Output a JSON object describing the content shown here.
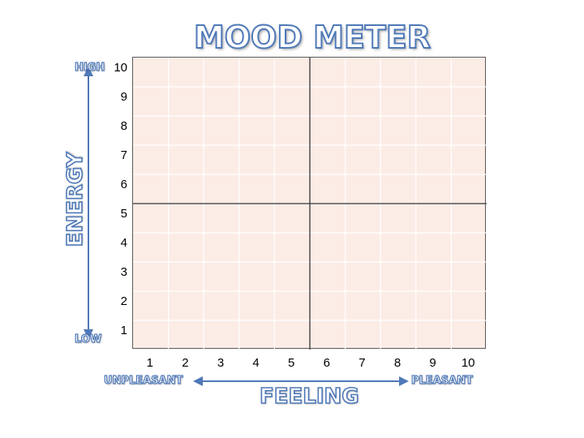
{
  "title": "MOOD METER",
  "y_axis": {
    "name": "ENERGY",
    "high_label": "HIGH",
    "low_label": "LOW",
    "ticks": [
      "10",
      "9",
      "8",
      "7",
      "6",
      "5",
      "4",
      "3",
      "2",
      "1"
    ]
  },
  "x_axis": {
    "name": "FEELING",
    "left_label": "UNPLEASANT",
    "right_label": "PLEASANT",
    "ticks": [
      "1",
      "2",
      "3",
      "4",
      "5",
      "6",
      "7",
      "8",
      "9",
      "10"
    ]
  },
  "colors": {
    "accent": "#4f79b8",
    "grid_fill": "#fcece6",
    "grid_line": "#ffffff",
    "divider": "#333333"
  }
}
